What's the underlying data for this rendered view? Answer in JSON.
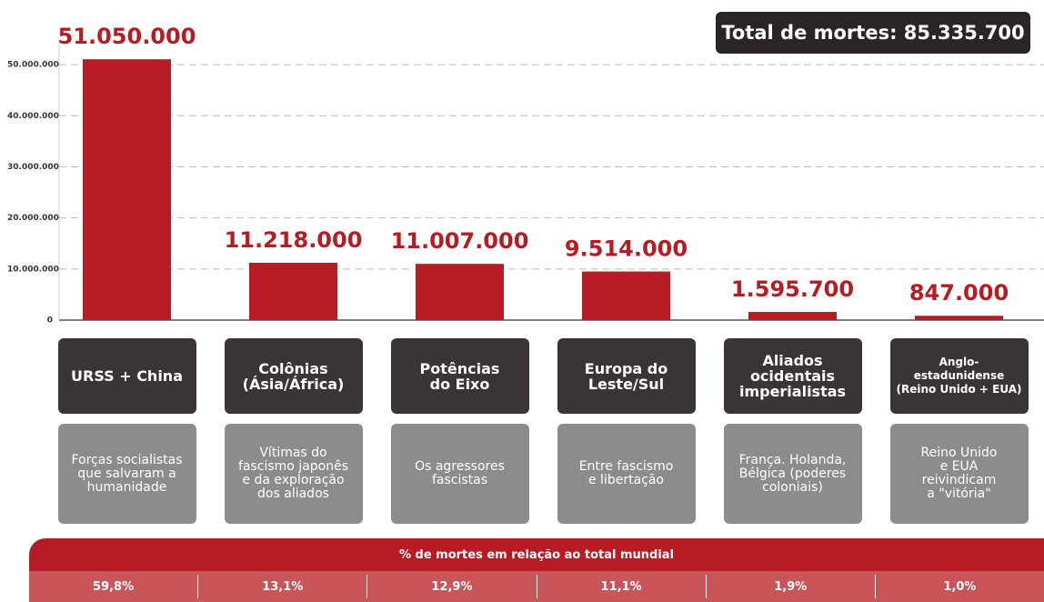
{
  "chart_data": {
    "type": "bar",
    "total": "Total de mortes: 85.335.700",
    "categories": [
      "URSS + China",
      "Colônias\n(Ásia/África)",
      "Potências\ndo Eixo",
      "Europa do\nLeste/Sul",
      "Aliados\nocidentais\nimperialistas",
      "Anglo-\nestadunidense\n(Reino Unido + EUA)"
    ],
    "descriptions": [
      "Forças socialistas\nque salvaram a\nhumanidade",
      "Vítimas do\nfascismo japonês\ne da exploração\ndos aliados",
      "Os agressores\nfascistas",
      "Entre fascismo\ne libertação",
      "França. Holanda,\nBélgica (poderes\ncoloniais)",
      "Reino Unido\ne EUA\nreivindicam\na \"vitória\""
    ],
    "values": [
      51050000,
      11218000,
      11007000,
      9514000,
      1595700,
      847000
    ],
    "value_labels": [
      "51.050.000",
      "11.218.000",
      "11.007.000",
      "9.514.000",
      "1.595.700",
      "847.000"
    ],
    "color": "#b71c24",
    "ylim": [
      0,
      55000000
    ],
    "yticks": [
      0,
      {
        "value": 10000000,
        "label": "10.000.000"
      },
      {
        "value": 20000000,
        "label": "20.000.000"
      },
      {
        "value": 30000000,
        "label": "30.000.000"
      },
      {
        "value": 40000000,
        "label": "40.000.000"
      },
      {
        "value": 50000000,
        "label": "50.000.000"
      }
    ],
    "grid": true,
    "percent": {
      "title": "% de mortes em relação ao total mundial",
      "values": [
        59.8,
        13.1,
        12.9,
        11.1,
        1.9,
        1.0
      ],
      "value_labels": [
        "59,8%",
        "13,1%",
        "12,9%",
        "11,1%",
        "1,9%",
        "1,0%"
      ]
    }
  }
}
